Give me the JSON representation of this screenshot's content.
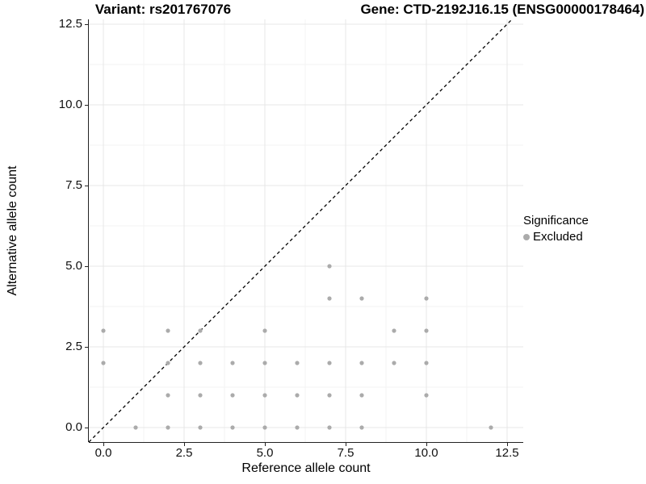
{
  "header": {
    "variant_title": "Variant: rs201767076",
    "gene_title": "Gene: CTD-2192J16.15 (ENSG00000178464)"
  },
  "axes": {
    "x": {
      "label": "Reference allele count",
      "tick_labels": [
        "0.0",
        "2.5",
        "5.0",
        "7.5",
        "10.0",
        "12.5"
      ]
    },
    "y": {
      "label": "Alternative allele count",
      "tick_labels": [
        "0.0",
        "2.5",
        "5.0",
        "7.5",
        "10.0",
        "12.5"
      ]
    }
  },
  "legend": {
    "title": "Significance",
    "items": [
      {
        "label": "Excluded",
        "color": "#ababab"
      }
    ]
  },
  "colors": {
    "point": "#ababab",
    "major_grid": "#e7e7e7",
    "minor_grid": "#f3f3f3",
    "axis": "#222222",
    "reference_line": "#000000",
    "background": "#ffffff"
  },
  "chart_data": {
    "type": "scatter",
    "title": "Variant: rs201767076 / Gene: CTD-2192J16.15 (ENSG00000178464)",
    "xlabel": "Reference allele count",
    "ylabel": "Alternative allele count",
    "xlim": [
      -0.45,
      13.0
    ],
    "ylim": [
      -0.45,
      12.65
    ],
    "x_ticks": [
      0,
      2.5,
      5,
      7.5,
      10,
      12.5
    ],
    "y_ticks": [
      0,
      2.5,
      5,
      7.5,
      10,
      12.5
    ],
    "x_minor_ticks": [
      1.25,
      3.75,
      6.25,
      8.75,
      11.25
    ],
    "y_minor_ticks": [
      1.25,
      3.75,
      6.25,
      8.75,
      11.25
    ],
    "grid": true,
    "legend_position": "right",
    "reference_line": {
      "type": "identity y=x",
      "style": "dashed",
      "color": "#000000"
    },
    "series": [
      {
        "name": "Excluded",
        "color": "#ababab",
        "points": [
          [
            1,
            0
          ],
          [
            2,
            0
          ],
          [
            3,
            0
          ],
          [
            4,
            0
          ],
          [
            5,
            0
          ],
          [
            6,
            0
          ],
          [
            7,
            0
          ],
          [
            8,
            0
          ],
          [
            12,
            0
          ],
          [
            2,
            1
          ],
          [
            3,
            1
          ],
          [
            4,
            1
          ],
          [
            5,
            1
          ],
          [
            6,
            1
          ],
          [
            7,
            1
          ],
          [
            8,
            1
          ],
          [
            10,
            1
          ],
          [
            0,
            2
          ],
          [
            2,
            2
          ],
          [
            3,
            2
          ],
          [
            4,
            2
          ],
          [
            5,
            2
          ],
          [
            6,
            2
          ],
          [
            7,
            2
          ],
          [
            8,
            2
          ],
          [
            9,
            2
          ],
          [
            10,
            2
          ],
          [
            0,
            3
          ],
          [
            2,
            3
          ],
          [
            3,
            3
          ],
          [
            5,
            3
          ],
          [
            9,
            3
          ],
          [
            10,
            3
          ],
          [
            7,
            4
          ],
          [
            8,
            4
          ],
          [
            10,
            4
          ],
          [
            7,
            5
          ]
        ]
      }
    ]
  }
}
